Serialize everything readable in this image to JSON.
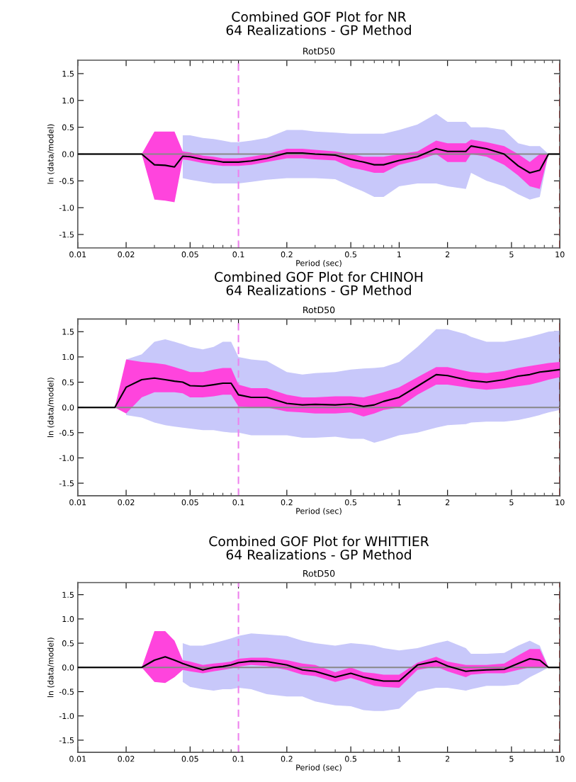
{
  "chart_data": [
    {
      "type": "line",
      "title": "Combined GOF Plot for NR\n64 Realizations - GP Method",
      "subtitle": "RotD50",
      "xlabel": "Period (sec)",
      "ylabel": "ln (data/model)",
      "log": "x",
      "grid": false,
      "legend": false,
      "x": [
        0.01,
        0.017,
        0.02,
        0.025,
        0.03,
        0.035,
        0.04,
        0.045,
        0.05,
        0.06,
        0.07,
        0.08,
        0.09,
        0.1,
        0.12,
        0.15,
        0.2,
        0.25,
        0.3,
        0.4,
        0.5,
        0.6,
        0.7,
        0.8,
        1,
        1.3,
        1.7,
        2,
        2.6,
        2.8,
        3.5,
        4.5,
        5.5,
        6.5,
        7.5,
        8.5,
        10
      ],
      "series": [
        {
          "color": "#c8c8fa",
          "values": [
            null,
            null,
            null,
            null,
            null,
            null,
            null,
            null,
            null,
            null,
            null,
            null,
            null,
            null,
            null,
            null,
            null,
            null,
            null,
            null,
            null,
            null,
            null,
            null,
            null,
            null,
            null,
            null,
            null,
            null,
            null,
            null,
            null,
            null,
            null,
            null,
            null
          ],
          "lower": [
            null,
            null,
            null,
            null,
            null,
            null,
            null,
            -0.45,
            -0.48,
            -0.52,
            -0.55,
            -0.55,
            -0.55,
            -0.55,
            -0.52,
            -0.48,
            -0.45,
            -0.45,
            -0.45,
            -0.47,
            -0.6,
            -0.7,
            -0.8,
            -0.8,
            -0.6,
            -0.55,
            -0.55,
            -0.6,
            -0.65,
            -0.35,
            -0.5,
            -0.6,
            -0.75,
            -0.85,
            -0.8,
            0,
            null
          ],
          "upper": [
            null,
            null,
            null,
            null,
            null,
            null,
            null,
            0.35,
            0.35,
            0.3,
            0.28,
            0.25,
            0.22,
            0.22,
            0.25,
            0.3,
            0.45,
            0.45,
            0.42,
            0.4,
            0.38,
            0.38,
            0.38,
            0.38,
            0.45,
            0.55,
            0.75,
            0.6,
            0.6,
            0.5,
            0.5,
            0.45,
            0.2,
            0.15,
            0.15,
            0,
            null
          ]
        },
        {
          "color": "#ff44dd",
          "values": [
            null,
            null,
            null,
            null,
            null,
            null,
            null,
            null,
            null,
            null,
            null,
            null,
            null,
            null,
            null,
            null,
            null,
            null,
            null,
            null,
            null,
            null,
            null,
            null,
            null,
            null,
            null,
            null,
            null,
            null,
            null,
            null,
            null,
            null,
            null,
            null,
            null
          ],
          "lower": [
            0,
            0,
            0,
            0,
            -0.85,
            -0.87,
            -0.9,
            -0.1,
            -0.12,
            -0.17,
            -0.2,
            -0.22,
            -0.22,
            -0.22,
            -0.2,
            -0.15,
            -0.08,
            -0.08,
            -0.1,
            -0.12,
            -0.25,
            -0.3,
            -0.35,
            -0.35,
            -0.2,
            -0.12,
            0.0,
            -0.15,
            -0.15,
            0.0,
            -0.05,
            -0.2,
            -0.4,
            -0.6,
            -0.65,
            0,
            0
          ],
          "upper": [
            0,
            0,
            0,
            0,
            0.42,
            0.42,
            0.42,
            0.05,
            0.03,
            -0.03,
            -0.05,
            -0.08,
            -0.08,
            -0.08,
            -0.05,
            0.0,
            0.1,
            0.1,
            0.08,
            0.05,
            0.0,
            -0.05,
            -0.05,
            -0.05,
            0.0,
            0.05,
            0.25,
            0.2,
            0.2,
            0.27,
            0.22,
            0.15,
            0.0,
            -0.15,
            0,
            0,
            0
          ]
        },
        {
          "color": "#000000",
          "values": [
            0,
            0,
            0,
            0,
            -0.2,
            -0.21,
            -0.24,
            -0.04,
            -0.05,
            -0.1,
            -0.12,
            -0.15,
            -0.15,
            -0.15,
            -0.13,
            -0.08,
            0.02,
            0.02,
            0.0,
            -0.02,
            -0.1,
            -0.15,
            -0.2,
            -0.2,
            -0.12,
            -0.05,
            0.1,
            0.05,
            0.05,
            0.15,
            0.1,
            0.0,
            -0.22,
            -0.35,
            -0.3,
            0,
            0
          ]
        }
      ],
      "xlim": [
        0.01,
        10
      ],
      "xticks": [
        0.01,
        0.02,
        0.05,
        0.1,
        0.2,
        0.5,
        1,
        2,
        5,
        10
      ],
      "ylim": [
        -1.75,
        1.75
      ],
      "yticks": [
        -1.5,
        {
          "value": -1,
          "label": "-1.0"
        },
        -0.5,
        {
          "value": 0,
          "label": "0.0"
        },
        0.5,
        {
          "value": 1,
          "label": "1.0"
        },
        1.5
      ],
      "ref_lines": [
        {
          "axis": "y",
          "value": 0,
          "color": "#888888",
          "line_style": "solid"
        },
        {
          "axis": "x",
          "value": 0.1,
          "color": "#ee82ee",
          "line_style": "dashed"
        },
        {
          "axis": "x",
          "value": 10,
          "color": "#cc0000",
          "line_style": "dashed"
        }
      ]
    },
    {
      "type": "line",
      "title": "Combined GOF Plot for CHINOH\n64 Realizations - GP Method",
      "subtitle": "RotD50",
      "xlabel": "Period (sec)",
      "ylabel": "ln (data/model)",
      "log": "x",
      "grid": false,
      "legend": false,
      "x": [
        0.01,
        0.017,
        0.02,
        0.025,
        0.03,
        0.035,
        0.04,
        0.045,
        0.05,
        0.06,
        0.07,
        0.08,
        0.09,
        0.1,
        0.12,
        0.15,
        0.2,
        0.25,
        0.3,
        0.4,
        0.5,
        0.6,
        0.7,
        0.8,
        1,
        1.3,
        1.7,
        2,
        2.6,
        2.8,
        3.5,
        4.5,
        5.5,
        6.5,
        7.5,
        8.5,
        10
      ],
      "series": [
        {
          "color": "#c8c8fa",
          "values": [
            null,
            null,
            null,
            null,
            null,
            null,
            null,
            null,
            null,
            null,
            null,
            null,
            null,
            null,
            null,
            null,
            null,
            null,
            null,
            null,
            null,
            null,
            null,
            null,
            null,
            null,
            null,
            null,
            null,
            null,
            null,
            null,
            null,
            null,
            null,
            null,
            null
          ],
          "lower": [
            null,
            null,
            -0.15,
            -0.2,
            -0.3,
            -0.35,
            -0.38,
            -0.4,
            -0.42,
            -0.45,
            -0.45,
            -0.48,
            -0.5,
            -0.5,
            -0.55,
            -0.55,
            -0.55,
            -0.6,
            -0.6,
            -0.58,
            -0.62,
            -0.62,
            -0.7,
            -0.65,
            -0.55,
            -0.5,
            -0.4,
            -0.35,
            -0.33,
            -0.3,
            -0.28,
            -0.28,
            -0.25,
            -0.2,
            -0.15,
            -0.1,
            -0.05
          ],
          "upper": [
            null,
            null,
            0.95,
            1.05,
            1.3,
            1.35,
            1.3,
            1.25,
            1.2,
            1.15,
            1.2,
            1.3,
            1.3,
            1.0,
            0.95,
            0.92,
            0.7,
            0.65,
            0.68,
            0.7,
            0.75,
            0.77,
            0.78,
            0.8,
            0.9,
            1.2,
            1.55,
            1.55,
            1.45,
            1.4,
            1.3,
            1.3,
            1.35,
            1.4,
            1.45,
            1.5,
            1.52
          ]
        },
        {
          "color": "#ff44dd",
          "values": [
            null,
            null,
            null,
            null,
            null,
            null,
            null,
            null,
            null,
            null,
            null,
            null,
            null,
            null,
            null,
            null,
            null,
            null,
            null,
            null,
            null,
            null,
            null,
            null,
            null,
            null,
            null,
            null,
            null,
            null,
            null,
            null,
            null,
            null,
            null,
            null,
            null
          ],
          "lower": [
            0,
            0,
            -0.12,
            0.2,
            0.3,
            0.3,
            0.3,
            0.28,
            0.2,
            0.2,
            0.22,
            0.25,
            0.25,
            0.02,
            0.0,
            0.0,
            -0.08,
            -0.1,
            -0.12,
            -0.12,
            -0.1,
            -0.18,
            -0.12,
            -0.05,
            0.0,
            0.25,
            0.45,
            0.45,
            0.4,
            0.38,
            0.35,
            0.38,
            0.42,
            0.45,
            0.5,
            0.55,
            0.6
          ],
          "upper": [
            0,
            0,
            0.95,
            0.9,
            0.88,
            0.85,
            0.8,
            0.75,
            0.7,
            0.7,
            0.75,
            0.78,
            0.78,
            0.45,
            0.38,
            0.38,
            0.25,
            0.2,
            0.2,
            0.22,
            0.22,
            0.2,
            0.25,
            0.3,
            0.4,
            0.6,
            0.8,
            0.8,
            0.72,
            0.7,
            0.68,
            0.72,
            0.78,
            0.82,
            0.85,
            0.88,
            0.9
          ]
        },
        {
          "color": "#000000",
          "values": [
            0,
            0,
            0.4,
            0.55,
            0.58,
            0.55,
            0.52,
            0.5,
            0.43,
            0.42,
            0.45,
            0.48,
            0.48,
            0.25,
            0.2,
            0.2,
            0.08,
            0.05,
            0.06,
            0.05,
            0.07,
            0.02,
            0.05,
            0.12,
            0.2,
            0.42,
            0.65,
            0.63,
            0.55,
            0.53,
            0.5,
            0.55,
            0.62,
            0.65,
            0.7,
            0.72,
            0.75
          ]
        }
      ],
      "xlim": [
        0.01,
        10
      ],
      "xticks": [
        0.01,
        0.02,
        0.05,
        0.1,
        0.2,
        0.5,
        1,
        2,
        5,
        10
      ],
      "ylim": [
        -1.75,
        1.75
      ],
      "yticks": [
        -1.5,
        {
          "value": -1,
          "label": "-1.0"
        },
        -0.5,
        {
          "value": 0,
          "label": "0.0"
        },
        0.5,
        {
          "value": 1,
          "label": "1.0"
        },
        1.5
      ],
      "ref_lines": [
        {
          "axis": "y",
          "value": 0,
          "color": "#888888",
          "line_style": "solid"
        },
        {
          "axis": "x",
          "value": 0.1,
          "color": "#ee82ee",
          "line_style": "dashed"
        },
        {
          "axis": "x",
          "value": 10,
          "color": "#cc0000",
          "line_style": "dashed"
        }
      ]
    },
    {
      "type": "line",
      "title": "Combined GOF Plot for WHITTIER\n64 Realizations - GP Method",
      "subtitle": "RotD50",
      "xlabel": "Period (sec)",
      "ylabel": "ln (data/model)",
      "log": "x",
      "grid": false,
      "legend": false,
      "x": [
        0.01,
        0.017,
        0.02,
        0.025,
        0.03,
        0.035,
        0.04,
        0.045,
        0.05,
        0.06,
        0.07,
        0.08,
        0.09,
        0.1,
        0.12,
        0.15,
        0.2,
        0.25,
        0.3,
        0.4,
        0.5,
        0.6,
        0.7,
        0.8,
        1,
        1.3,
        1.7,
        2,
        2.6,
        2.8,
        3.5,
        4.5,
        5.5,
        6.5,
        7.5,
        8.5,
        10
      ],
      "series": [
        {
          "color": "#c8c8fa",
          "values": [
            null,
            null,
            null,
            null,
            null,
            null,
            null,
            null,
            null,
            null,
            null,
            null,
            null,
            null,
            null,
            null,
            null,
            null,
            null,
            null,
            null,
            null,
            null,
            null,
            null,
            null,
            null,
            null,
            null,
            null,
            null,
            null,
            null,
            null,
            null,
            null,
            null
          ],
          "lower": [
            null,
            null,
            null,
            null,
            null,
            null,
            null,
            -0.3,
            -0.4,
            -0.45,
            -0.48,
            -0.45,
            -0.45,
            -0.42,
            -0.45,
            -0.55,
            -0.6,
            -0.6,
            -0.7,
            -0.78,
            -0.8,
            -0.88,
            -0.9,
            -0.9,
            -0.85,
            -0.5,
            -0.42,
            -0.42,
            -0.48,
            -0.45,
            -0.38,
            -0.38,
            -0.35,
            -0.2,
            -0.1,
            0,
            null
          ],
          "upper": [
            null,
            null,
            null,
            null,
            null,
            null,
            null,
            0.5,
            0.45,
            0.45,
            0.5,
            0.55,
            0.6,
            0.65,
            0.7,
            0.68,
            0.65,
            0.55,
            0.5,
            0.45,
            0.5,
            0.48,
            0.45,
            0.4,
            0.35,
            0.4,
            0.5,
            0.55,
            0.4,
            0.28,
            0.28,
            0.3,
            0.45,
            0.55,
            0.45,
            0,
            null
          ]
        },
        {
          "color": "#ff44dd",
          "values": [
            null,
            null,
            null,
            null,
            null,
            null,
            null,
            null,
            null,
            null,
            null,
            null,
            null,
            null,
            null,
            null,
            null,
            null,
            null,
            null,
            null,
            null,
            null,
            null,
            null,
            null,
            null,
            null,
            null,
            null,
            null,
            null,
            null,
            null,
            null,
            null,
            null
          ],
          "lower": [
            0,
            0,
            0,
            0,
            -0.3,
            -0.32,
            -0.2,
            -0.05,
            -0.08,
            -0.12,
            -0.08,
            -0.05,
            -0.02,
            0.02,
            0.05,
            0.03,
            -0.05,
            -0.15,
            -0.18,
            -0.3,
            -0.22,
            -0.3,
            -0.38,
            -0.4,
            -0.42,
            -0.05,
            0.02,
            -0.08,
            -0.2,
            -0.15,
            -0.12,
            -0.12,
            -0.05,
            0.0,
            0.0,
            0,
            0
          ],
          "upper": [
            0,
            0,
            0,
            0,
            0.75,
            0.75,
            0.55,
            0.15,
            0.12,
            0.05,
            0.08,
            0.1,
            0.12,
            0.18,
            0.2,
            0.2,
            0.15,
            0.08,
            0.05,
            -0.1,
            0.0,
            -0.1,
            -0.12,
            -0.15,
            -0.15,
            0.1,
            0.22,
            0.12,
            0.05,
            0.05,
            0.05,
            0.08,
            0.25,
            0.38,
            0.38,
            0,
            0
          ]
        },
        {
          "color": "#000000",
          "values": [
            0,
            0,
            0,
            0,
            0.15,
            0.22,
            0.15,
            0.08,
            0.03,
            -0.05,
            0.0,
            0.02,
            0.05,
            0.1,
            0.13,
            0.12,
            0.05,
            -0.05,
            -0.08,
            -0.2,
            -0.12,
            -0.2,
            -0.25,
            -0.28,
            -0.28,
            0.05,
            0.13,
            0.03,
            -0.08,
            -0.07,
            -0.05,
            -0.04,
            0.08,
            0.18,
            0.15,
            0,
            0
          ]
        }
      ],
      "xlim": [
        0.01,
        10
      ],
      "xticks": [
        0.01,
        0.02,
        0.05,
        0.1,
        0.2,
        0.5,
        1,
        2,
        5,
        10
      ],
      "ylim": [
        -1.75,
        1.75
      ],
      "yticks": [
        -1.5,
        {
          "value": -1,
          "label": "-1.0"
        },
        -0.5,
        {
          "value": 0,
          "label": "0.0"
        },
        0.5,
        {
          "value": 1,
          "label": "1.0"
        },
        1.5
      ],
      "ref_lines": [
        {
          "axis": "y",
          "value": 0,
          "color": "#888888",
          "line_style": "solid"
        },
        {
          "axis": "x",
          "value": 0.1,
          "color": "#ee82ee",
          "line_style": "dashed"
        },
        {
          "axis": "x",
          "value": 10,
          "color": "#cc0000",
          "line_style": "dashed"
        }
      ]
    }
  ]
}
